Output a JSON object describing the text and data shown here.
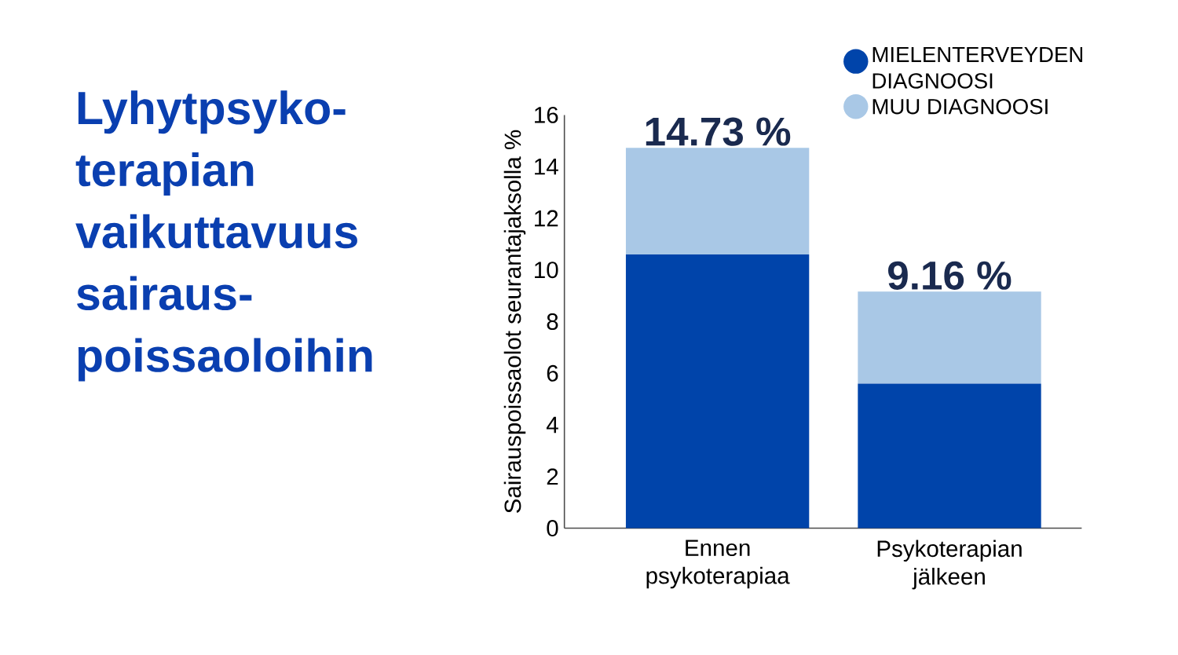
{
  "chart_data": {
    "type": "bar",
    "title": "Lyhytpsyko-terapian vaikuttavuus sairaus-poissaoloihin",
    "ylabel": "Sairauspoissaolot seurantajaksolla %",
    "categories": [
      "Ennen psykoterapiaa",
      "Psykoterapian jälkeen"
    ],
    "series": [
      {
        "name": "MIELENTERVEYDEN DIAGNOOSI",
        "color": "#0044aa",
        "values": [
          10.6,
          5.6
        ]
      },
      {
        "name": "MUU DIAGNOOSI",
        "color": "#a9c8e6",
        "values": [
          4.13,
          3.56
        ]
      }
    ],
    "stacked": true,
    "totals": [
      "14.73 %",
      "9.16 %"
    ],
    "ylim": [
      0,
      16
    ],
    "yticks": [
      0,
      2,
      4,
      6,
      8,
      10,
      12,
      14,
      16
    ],
    "legend": "top right",
    "grid": false
  }
}
